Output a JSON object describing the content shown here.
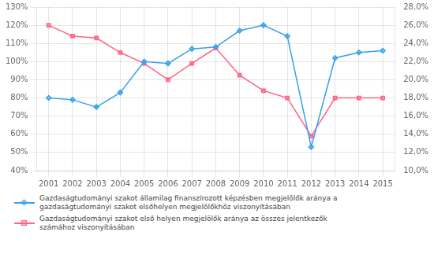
{
  "chart_data": {
    "type": "line",
    "x": [
      2001,
      2002,
      2003,
      2004,
      2005,
      2006,
      2007,
      2008,
      2009,
      2010,
      2011,
      2012,
      2013,
      2014,
      2015
    ],
    "series": [
      {
        "name": "Gazdaságtudományi szakot államilag finanszírozott képzésben megjelölők aránya a\ngazdaságtudományi szakot elsőhelyen megjelölőkhöz viszonyításában",
        "values": [
          80,
          79,
          75,
          83,
          100,
          99,
          107,
          108,
          117,
          120,
          114,
          53,
          102,
          105,
          106
        ],
        "marker": "diamond"
      },
      {
        "name": "Gazdaságtudományi szakot első helyen megjelölők aránya az összes jelentkezők\nszámához viszonyításában",
        "values": [
          26.0,
          24.8,
          24.6,
          23.0,
          21.8,
          20.0,
          21.8,
          23.5,
          20.5,
          18.8,
          18.0,
          13.8,
          18.0,
          18.0,
          18.0
        ],
        "marker": "square",
        "axis": "y2"
      }
    ],
    "xlim": [
      2000.5,
      2015.5
    ],
    "xticks": [
      2001,
      2002,
      2003,
      2004,
      2005,
      2006,
      2007,
      2008,
      2009,
      2010,
      2011,
      2012,
      2013,
      2014,
      2015
    ],
    "ylim": [
      40,
      130
    ],
    "yticks": [
      {
        "value": 40,
        "label": "40%"
      },
      {
        "value": 50,
        "label": "50%"
      },
      {
        "value": 60,
        "label": "60%"
      },
      {
        "value": 70,
        "label": "70%"
      },
      {
        "value": 80,
        "label": "80%"
      },
      {
        "value": 90,
        "label": "90%"
      },
      {
        "value": 100,
        "label": "100%"
      },
      {
        "value": 110,
        "label": "110%"
      },
      {
        "value": 120,
        "label": "120%"
      },
      {
        "value": 130,
        "label": "130%"
      }
    ],
    "y2lim": [
      10.0,
      28.0
    ],
    "y2ticks": [
      {
        "value": 10.0,
        "label": "10,0%"
      },
      {
        "value": 12.0,
        "label": "12,0%"
      },
      {
        "value": 14.0,
        "label": "14,0%"
      },
      {
        "value": 16.0,
        "label": "16,0%"
      },
      {
        "value": 18.0,
        "label": "18,0%"
      },
      {
        "value": 20.0,
        "label": "20,0%"
      },
      {
        "value": 22.0,
        "label": "22,0%"
      },
      {
        "value": 24.0,
        "label": "24,0%"
      },
      {
        "value": 26.0,
        "label": "26,0%"
      },
      {
        "value": 28.0,
        "label": "28,0%"
      }
    ],
    "grid": true,
    "legend": "lower left"
  }
}
